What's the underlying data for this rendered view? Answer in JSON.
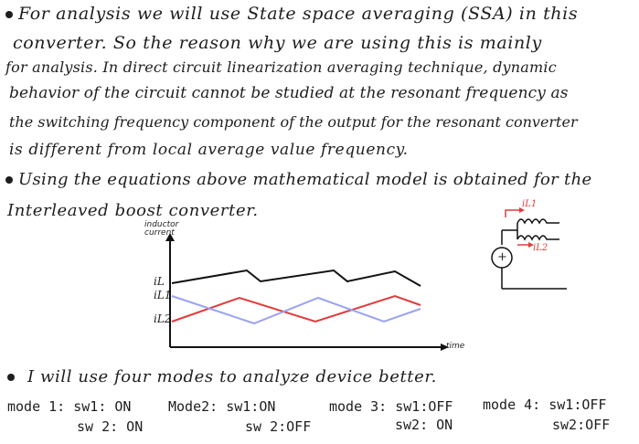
{
  "paragraph1": [
    "For analysis we will use State space averaging (SSA) in this",
    "converter. So the reason why we are using this is mainly",
    "for analysis. In direct circuit linearization averaging technique, dynamic",
    "behavior of the circuit cannot be studied at the resonant frequency as",
    "the switching frequency component of the output for the resonant converter",
    "is different from local average value frequency."
  ],
  "paragraph2": [
    "Using the equations above mathematical model is obtained for the",
    "Interleaved boost converter."
  ],
  "chart_data": {
    "type": "line",
    "ylabel": "inductor current",
    "xlabel": "time",
    "series_labels": [
      "iL",
      "iL1",
      "iL2"
    ],
    "colors": {
      "iL": "#111111",
      "iL1": "#e23b3b",
      "iL2": "#9aa3f0"
    }
  },
  "circuit": {
    "label_il1": "iL1",
    "label_il2": "iL2",
    "source_symbol": "+"
  },
  "paragraph3": "I will use four modes to analyze device better.",
  "modes": [
    {
      "title": "mode 1: sw1: ON",
      "line2": "sw 2: ON"
    },
    {
      "title": "Mode2: sw1:ON",
      "line2": "sw 2:OFF"
    },
    {
      "title": "mode 3: sw1:OFF",
      "line2": "sw2: ON"
    },
    {
      "title": "mode 4: sw1:OFF",
      "line2": "sw2:OFF"
    }
  ]
}
